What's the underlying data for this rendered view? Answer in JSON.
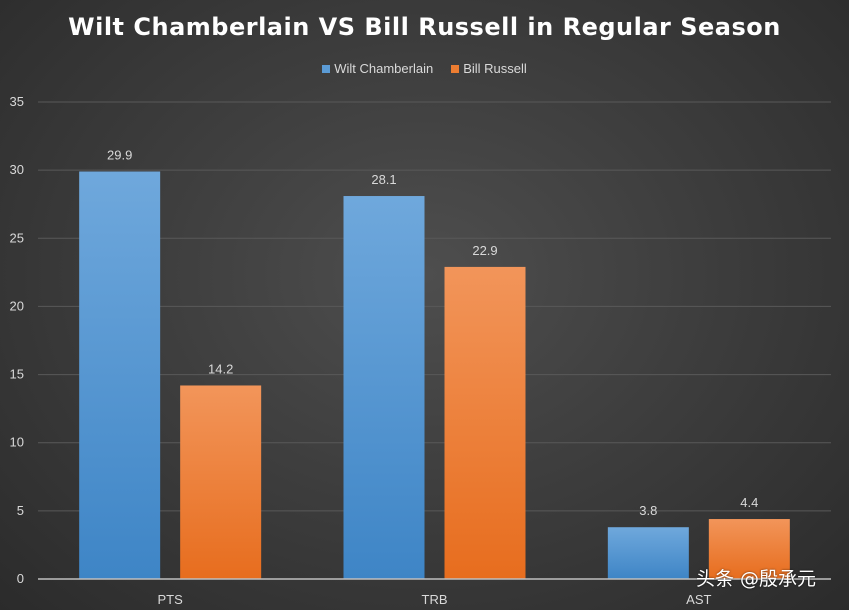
{
  "chart_data": {
    "type": "bar",
    "title": "Wilt Chamberlain VS Bill Russell in Regular Season",
    "xlabel": "",
    "ylabel": "",
    "categories": [
      "PTS",
      "TRB",
      "AST"
    ],
    "series": [
      {
        "name": "Wilt Chamberlain",
        "values": [
          29.9,
          28.1,
          3.8
        ],
        "value_labels": [
          "29.9",
          "28.1",
          "3.8"
        ],
        "color": "#5b9bd5"
      },
      {
        "name": "Bill Russell",
        "values": [
          14.2,
          22.9,
          4.4
        ],
        "value_labels": [
          "14.2",
          "22.9",
          "4.4"
        ],
        "color": "#ed7d31"
      }
    ],
    "ylim": [
      0,
      35
    ],
    "yticks": [
      0,
      5,
      10,
      15,
      20,
      25,
      30,
      35
    ],
    "grid": true,
    "legend_position": "top-center",
    "data_labels": true,
    "background": "dark-gray-gradient"
  },
  "watermark": "头条 @殷承元"
}
